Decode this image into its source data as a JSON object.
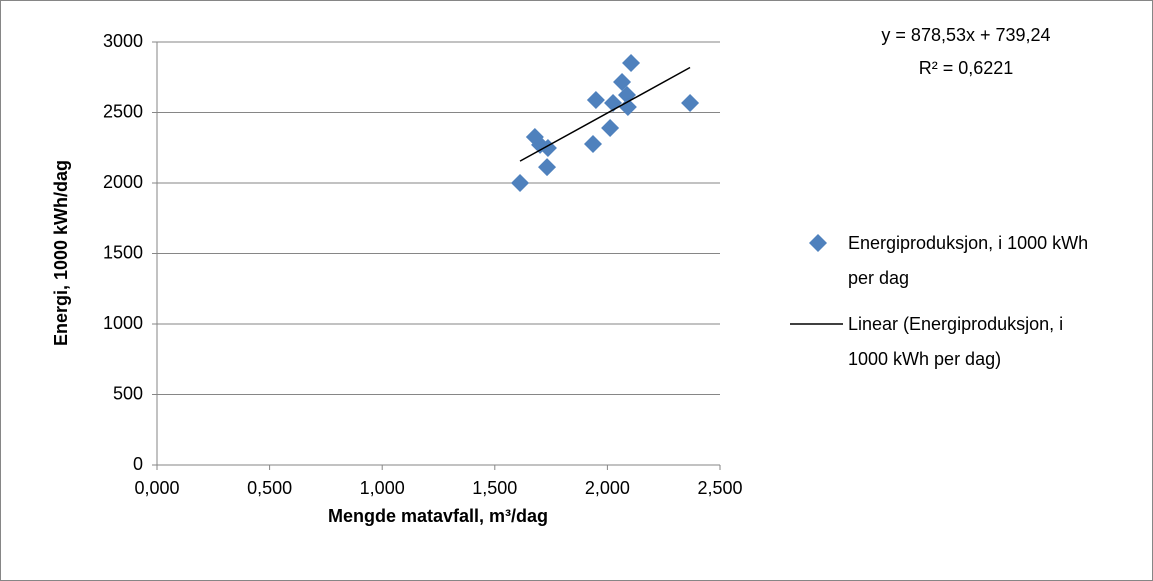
{
  "chart_data": {
    "type": "scatter",
    "xlabel": "Mengde matavfall, m³/dag",
    "ylabel": "Energi, 1000 kWh/dag",
    "annotations": [
      "y = 878,53x + 739,24",
      "R² = 0,6221"
    ],
    "xlim": [
      0,
      2.5
    ],
    "xticks": [
      {
        "value": 0,
        "label": "0,000"
      },
      {
        "value": 0.5,
        "label": "0,500"
      },
      {
        "value": 1,
        "label": "1,000"
      },
      {
        "value": 1.5,
        "label": "1,500"
      },
      {
        "value": 2,
        "label": "2,000"
      },
      {
        "value": 2.5,
        "label": "2,500"
      }
    ],
    "ylim": [
      0,
      3000
    ],
    "yticks": [
      0,
      500,
      1000,
      1500,
      2000,
      2500,
      3000
    ],
    "grid": true,
    "legend": "right",
    "series": [
      {
        "name": "Energiproduksjon, i 1000 kWh per dag",
        "color": "#4f81bd",
        "x": [
          1.612,
          1.678,
          1.701,
          1.736,
          1.732,
          1.936,
          1.949,
          2.012,
          2.025,
          2.065,
          2.087,
          2.091,
          2.105,
          2.367
        ],
        "values": [
          2000,
          2326,
          2270,
          2248,
          2113,
          2277,
          2589,
          2390,
          2567,
          2716,
          2624,
          2539,
          2851,
          2567
        ]
      },
      {
        "name": "Linear (Energiproduksjon, i 1000 kWh per dag)",
        "color": "#000000",
        "type": "line",
        "x": [
          1.612,
          2.367
        ],
        "values": [
          2155,
          2819
        ]
      }
    ]
  }
}
